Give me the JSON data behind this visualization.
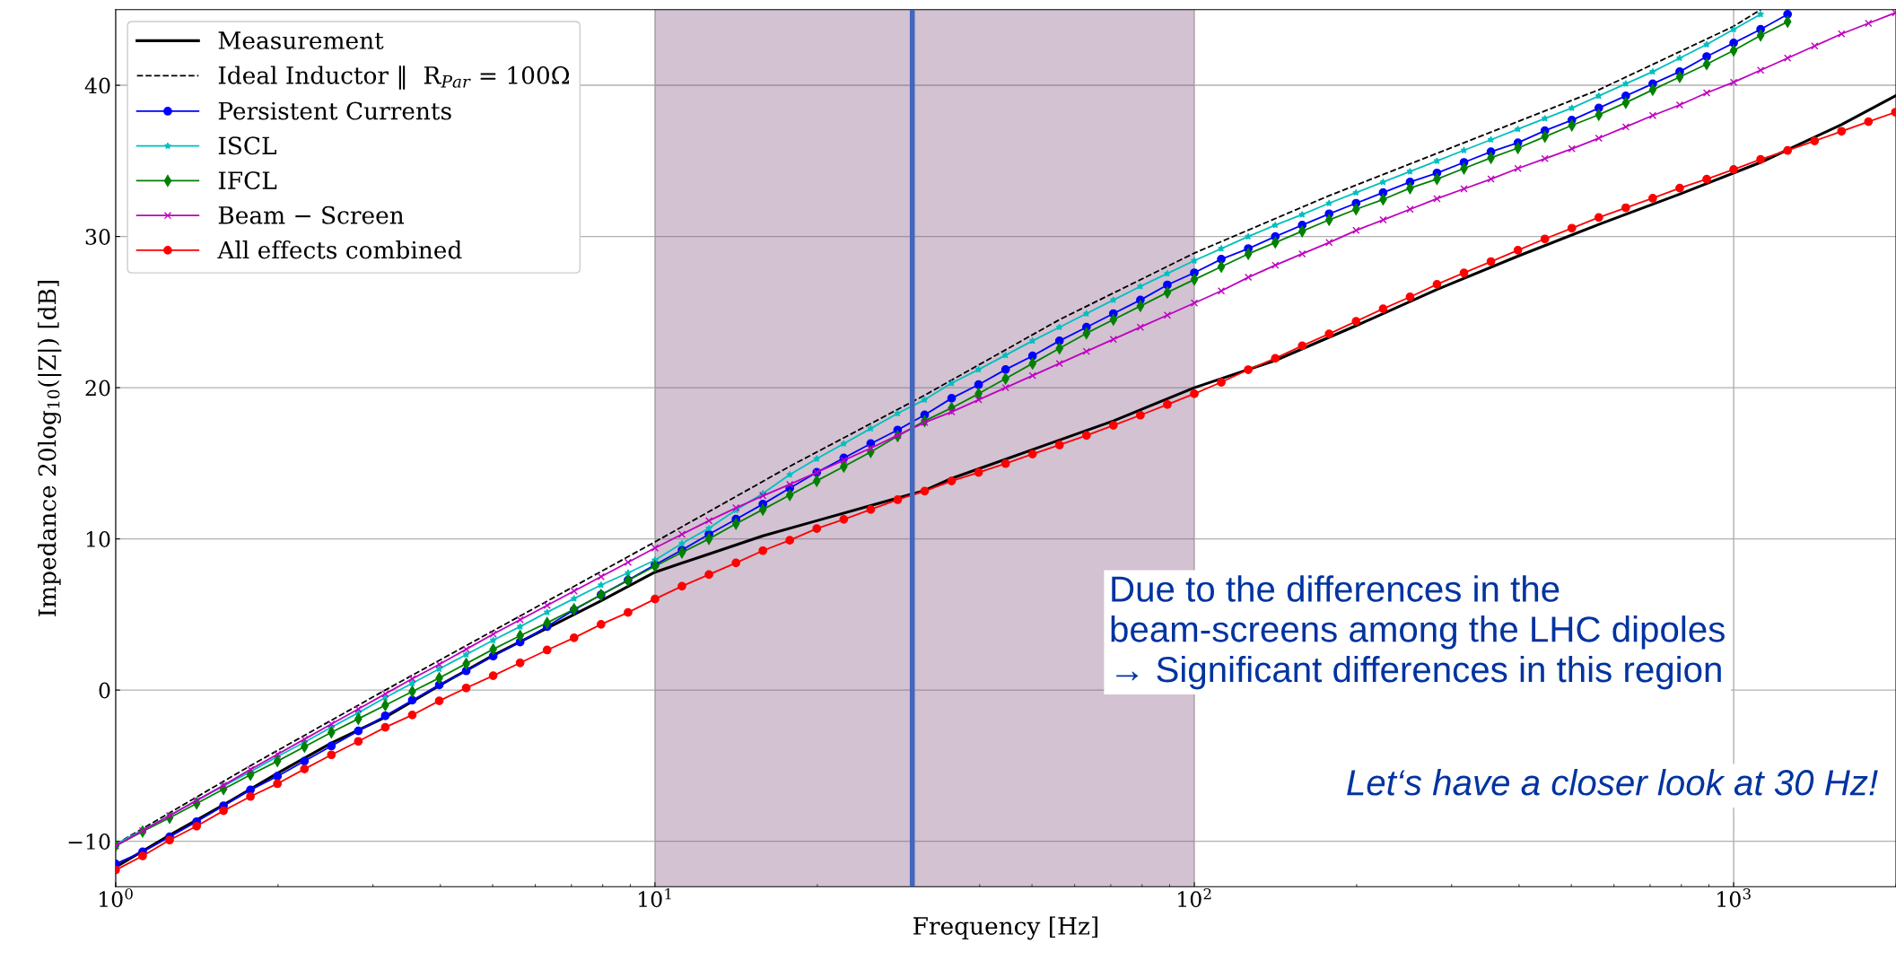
{
  "chart_data": {
    "type": "line",
    "xlabel": "Frequency [Hz]",
    "ylabel": "Impedance 20log$_{10}$(|Z|) [dB]",
    "log": "x",
    "xlim": [
      1,
      2000
    ],
    "xticks": [
      {
        "value": 1,
        "label": "10$^{0}$"
      },
      {
        "value": 10,
        "label": "10$^{1}$"
      },
      {
        "value": 100,
        "label": "10$^{2}$"
      },
      {
        "value": 1000,
        "label": "10$^{3}$"
      }
    ],
    "ylim": [
      -13,
      45
    ],
    "yticks": [
      -10,
      0,
      10,
      20,
      30,
      40
    ],
    "grid": true,
    "legend": "top left",
    "x": [
      1,
      1.122,
      1.259,
      1.413,
      1.585,
      1.778,
      1.995,
      2.239,
      2.512,
      2.818,
      3.162,
      3.548,
      3.981,
      4.467,
      5.012,
      5.623,
      6.31,
      7.079,
      7.943,
      8.913,
      10,
      11.22,
      12.59,
      14.13,
      15.85,
      17.78,
      19.95,
      22.39,
      25.12,
      28.18,
      31.62,
      35.48,
      39.81,
      44.67,
      50.12,
      56.23,
      63.1,
      70.79,
      79.43,
      89.13,
      100,
      112.2,
      125.9,
      141.3,
      158.5,
      177.8,
      199.5,
      223.9,
      251.2,
      281.8,
      316.2,
      354.8,
      398.1,
      446.7,
      501.2,
      562.3,
      631,
      707.9,
      794.3,
      891.3,
      1000,
      1122,
      1259,
      1413,
      1585,
      1778,
      1995
    ],
    "series": [
      {
        "name": "Measurement",
        "color": "#000000",
        "marker": "none",
        "line_style": "solid",
        "x": [
          1,
          1.259,
          1.585,
          1.995,
          2.512,
          3.162,
          3.981,
          5.012,
          6.31,
          7.943,
          10,
          12.59,
          15.85,
          19.95,
          25.12,
          31.62,
          35.48,
          50.12,
          70.79,
          100,
          141.3,
          199.5,
          281.8,
          398.1,
          562.3,
          794.3,
          1122,
          1585,
          1995
        ],
        "values": [
          -11.7,
          -9.6,
          -7.6,
          -5.5,
          -3.5,
          -1.8,
          0.3,
          2.3,
          4.1,
          5.9,
          7.8,
          9.0,
          10.2,
          11.2,
          12.2,
          13.2,
          14.0,
          15.9,
          17.8,
          20.0,
          21.8,
          24.1,
          26.5,
          28.7,
          30.8,
          32.8,
          34.9,
          37.4,
          39.3
        ]
      },
      {
        "name": "Ideal Inductor ‖  R$_{Par}$ = 100Ω",
        "color": "#000000",
        "marker": "none",
        "line_style": "dashed",
        "x": [
          1,
          1.778,
          3.162,
          5.623,
          10,
          17.78,
          31.62,
          56.23,
          100,
          177.8,
          316.2,
          562.3,
          1000,
          1122
        ],
        "values": [
          -10.2,
          -5.0,
          0.0,
          4.9,
          9.8,
          14.8,
          19.5,
          24.5,
          28.9,
          32.7,
          36.2,
          39.7,
          43.9,
          45.0
        ]
      },
      {
        "name": "Persistent Currents",
        "color": "#0000ff",
        "marker": "circle",
        "line_style": "solid",
        "values": [
          -11.5,
          -10.7,
          -9.7,
          -8.7,
          -7.65,
          -6.6,
          -5.7,
          -4.7,
          -3.7,
          -2.7,
          -1.7,
          -0.67,
          0.34,
          1.27,
          2.25,
          3.18,
          4.2,
          5.3,
          6.3,
          7.27,
          8.29,
          9.26,
          10.3,
          11.3,
          12.3,
          13.36,
          14.4,
          15.35,
          16.3,
          17.2,
          18.2,
          19.3,
          20.2,
          21.2,
          22.1,
          23.1,
          24.0,
          24.9,
          25.8,
          26.8,
          27.6,
          28.5,
          29.2,
          30.0,
          30.75,
          31.5,
          32.2,
          32.9,
          33.6,
          34.2,
          34.9,
          35.6,
          36.2,
          37.0,
          37.7,
          38.5,
          39.3,
          40.1,
          40.9,
          41.9,
          42.8,
          43.7,
          44.7,
          null,
          null,
          null,
          null
        ]
      },
      {
        "name": "ISCL",
        "color": "#00bfbf",
        "marker": "star",
        "line_style": "solid",
        "values": [
          -10.2,
          -9.25,
          -8.3,
          -7.3,
          -6.35,
          -5.4,
          -4.4,
          -3.45,
          -2.45,
          -1.5,
          -0.5,
          0.45,
          1.4,
          2.35,
          3.3,
          4.2,
          5.15,
          6.05,
          6.95,
          7.75,
          8.6,
          9.7,
          10.7,
          11.9,
          13.0,
          14.25,
          15.3,
          16.3,
          17.3,
          18.3,
          19.2,
          20.3,
          21.2,
          22.15,
          23.1,
          24.0,
          24.9,
          25.8,
          26.7,
          27.55,
          28.4,
          29.2,
          30.0,
          30.75,
          31.45,
          32.2,
          32.9,
          33.6,
          34.3,
          35.0,
          35.7,
          36.4,
          37.1,
          37.8,
          38.5,
          39.3,
          40.1,
          40.9,
          41.8,
          42.7,
          43.7,
          44.7,
          null,
          null,
          null,
          null,
          null
        ]
      },
      {
        "name": "IFCL",
        "color": "#008000",
        "marker": "diamond",
        "line_style": "solid",
        "values": [
          -10.3,
          -9.35,
          -8.45,
          -7.5,
          -6.55,
          -5.6,
          -4.7,
          -3.75,
          -2.8,
          -1.9,
          -1.0,
          -0.1,
          0.8,
          1.75,
          2.7,
          3.6,
          4.45,
          5.35,
          6.3,
          7.25,
          8.2,
          9.1,
          10.0,
          11.0,
          11.94,
          12.9,
          13.84,
          14.78,
          15.75,
          16.8,
          17.8,
          18.66,
          19.6,
          20.6,
          21.6,
          22.6,
          23.6,
          24.5,
          25.4,
          26.3,
          27.15,
          28.0,
          28.85,
          29.6,
          30.35,
          31.1,
          31.8,
          32.45,
          33.2,
          33.8,
          34.5,
          35.2,
          35.85,
          36.6,
          37.35,
          38.05,
          38.85,
          39.7,
          40.55,
          41.4,
          42.3,
          43.3,
          44.2,
          null,
          null,
          null,
          null
        ]
      },
      {
        "name": "Beam − Screen",
        "color": "#bf00bf",
        "marker": "cross",
        "line_style": "solid",
        "values": [
          -10.3,
          -9.3,
          -8.3,
          -7.3,
          -6.3,
          -5.25,
          -4.25,
          -3.25,
          -2.25,
          -1.25,
          -0.25,
          0.75,
          1.7,
          2.7,
          3.7,
          4.65,
          5.6,
          6.55,
          7.5,
          8.45,
          9.4,
          10.3,
          11.2,
          12.05,
          12.85,
          13.6,
          14.4,
          15.2,
          16.0,
          16.85,
          17.7,
          18.4,
          19.2,
          20.0,
          20.8,
          21.6,
          22.4,
          23.2,
          24.0,
          24.8,
          25.6,
          26.4,
          27.3,
          28.1,
          28.85,
          29.6,
          30.4,
          31.1,
          31.8,
          32.5,
          33.15,
          33.8,
          34.5,
          35.15,
          35.8,
          36.5,
          37.25,
          38.0,
          38.7,
          39.5,
          40.2,
          41.0,
          41.8,
          42.6,
          43.4,
          44.1,
          44.8
        ]
      },
      {
        "name": "All effects combined",
        "color": "#ff0000",
        "marker": "circle",
        "line_style": "solid",
        "values": [
          -11.9,
          -10.97,
          -9.92,
          -9.0,
          -7.98,
          -7.04,
          -6.19,
          -5.22,
          -4.28,
          -3.39,
          -2.46,
          -1.65,
          -0.71,
          0.14,
          0.95,
          1.8,
          2.65,
          3.46,
          4.35,
          5.13,
          6.02,
          6.87,
          7.64,
          8.41,
          9.22,
          9.91,
          10.68,
          11.29,
          11.94,
          12.59,
          13.16,
          13.83,
          14.39,
          14.98,
          15.61,
          16.21,
          16.84,
          17.51,
          18.18,
          18.89,
          19.6,
          20.36,
          21.19,
          21.94,
          22.77,
          23.56,
          24.39,
          25.22,
          26.0,
          26.84,
          27.59,
          28.34,
          29.09,
          29.84,
          30.55,
          31.26,
          31.9,
          32.53,
          33.2,
          33.79,
          34.43,
          35.1,
          35.69,
          36.32,
          36.96,
          37.59,
          38.22
        ]
      }
    ],
    "bands": [
      {
        "axis": "x",
        "from": 10,
        "to": 100,
        "color": "#7f4f7f"
      }
    ],
    "ref_lines": [
      {
        "axis": "x",
        "value": 30,
        "color": "#4466bb",
        "line_style": "solid"
      }
    ],
    "annotations": [
      "Due to the differences in the\nbeam-screens among the LHC dipoles\n→ Significant differences in this region",
      "Let‘s have a closer look at 30 Hz!"
    ]
  }
}
